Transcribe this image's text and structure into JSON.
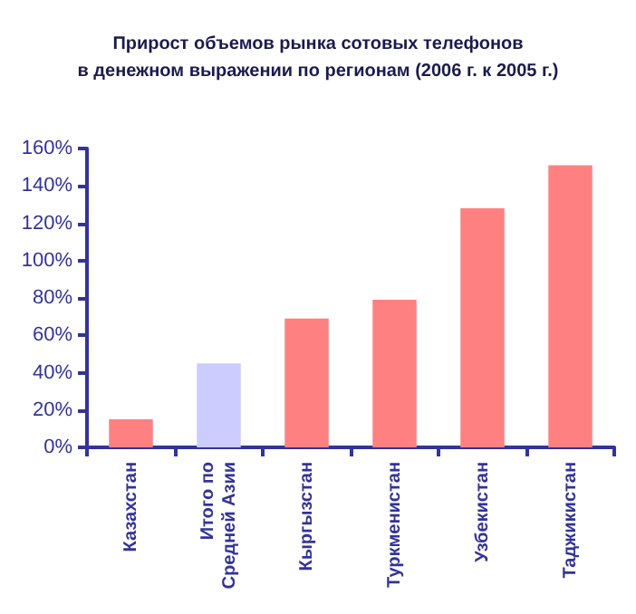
{
  "chart_data": {
    "type": "bar",
    "title": "Прирост объемов рынка сотовых телефонов\nв денежном выражении по регионам (2006 г. к 2005 г.)",
    "categories": [
      "Казахстан",
      "Итого по\nСредней Азии",
      "Кыргызстан",
      "Туркменистан",
      "Узбекистан",
      "Таджикистан"
    ],
    "values": [
      15,
      45,
      69,
      79,
      128,
      151
    ],
    "colors": [
      "#ff8080",
      "#ccccff",
      "#ff8080",
      "#ff8080",
      "#ff8080",
      "#ff8080"
    ],
    "ylim": [
      0,
      160
    ],
    "yticks": [
      {
        "value": 0,
        "label": "0%"
      },
      {
        "value": 20,
        "label": "20%"
      },
      {
        "value": 40,
        "label": "40%"
      },
      {
        "value": 60,
        "label": "60%"
      },
      {
        "value": 80,
        "label": "80%"
      },
      {
        "value": 100,
        "label": "100%"
      },
      {
        "value": 120,
        "label": "120%"
      },
      {
        "value": 140,
        "label": "140%"
      },
      {
        "value": 160,
        "label": "160%"
      }
    ],
    "grid": false
  }
}
